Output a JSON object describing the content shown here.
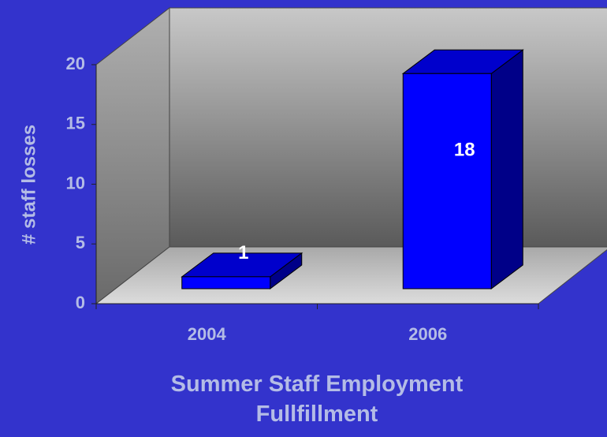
{
  "chart_data": {
    "type": "bar3d",
    "categories": [
      "2004",
      "2006"
    ],
    "values": [
      1,
      18
    ],
    "color": "#0000ff",
    "x_label": "Summer Staff Employment Fullfillment",
    "y_label": "# staff losses",
    "ylim": [
      0,
      20
    ],
    "yticks": [
      0,
      5,
      10,
      15,
      20
    ]
  }
}
